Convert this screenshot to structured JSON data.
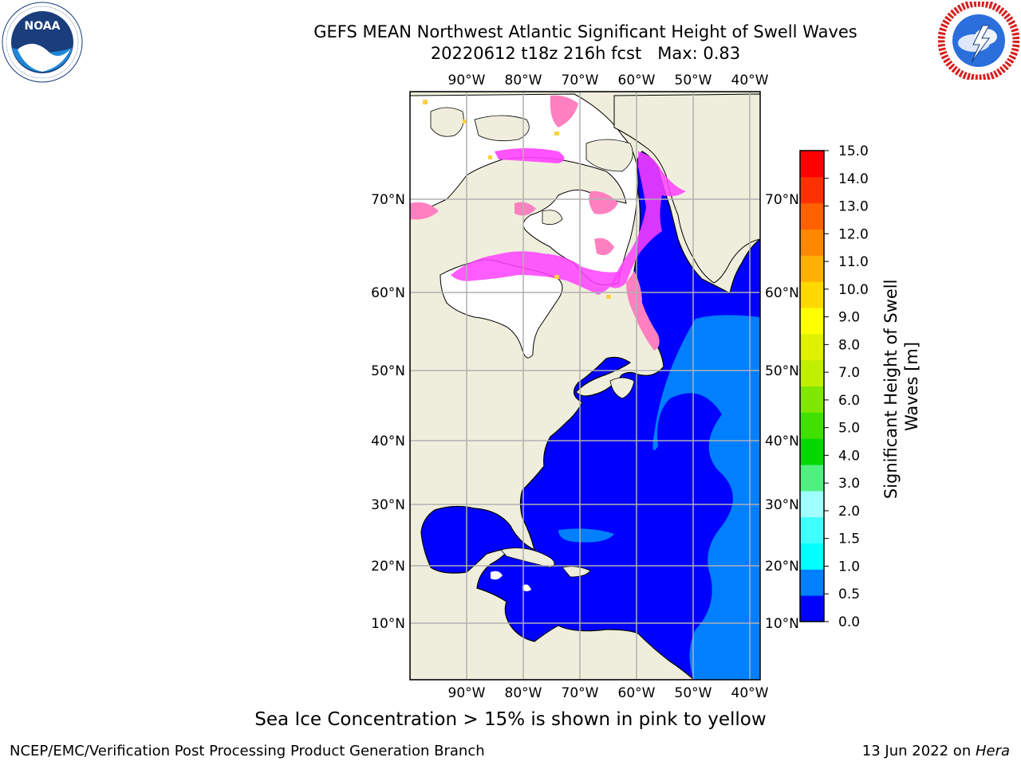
{
  "header": {
    "title_line1": "GEFS MEAN Northwest Atlantic Significant Height of Swell Waves",
    "title_line2": "20220612 t18z 216h fcst   Max: 0.83"
  },
  "logos": {
    "left": {
      "name": "noaa-logo",
      "text": "NOAA",
      "ring_text": "NATIONAL OCEANIC AND ATMOSPHERIC ADMINISTRATION · U.S. DEPARTMENT OF COMMERCE"
    },
    "right": {
      "name": "nws-logo",
      "ring_text": "NATIONAL WEATHER SERVICE"
    }
  },
  "map": {
    "lon_labels": [
      "90°W",
      "80°W",
      "70°W",
      "60°W",
      "50°W",
      "40°W"
    ],
    "lat_labels": [
      "70°N",
      "60°N",
      "50°N",
      "40°N",
      "30°N",
      "20°N",
      "10°N"
    ],
    "land_color": "#efeedc",
    "ocean_low_color": "#0000ff",
    "ocean_mid_color": "#0080ff",
    "ice_colors": [
      "#ff40ff",
      "#ff80c0",
      "#ffd040"
    ]
  },
  "colorbar": {
    "label": "Significant Height of Swell Waves [m]",
    "ticks": [
      "15.0",
      "14.0",
      "13.0",
      "12.0",
      "11.0",
      "10.0",
      "9.0",
      "8.0",
      "7.0",
      "6.0",
      "5.0",
      "4.0",
      "3.0",
      "2.0",
      "1.5",
      "1.0",
      "0.5",
      "0.0"
    ],
    "colors": [
      "#0000ff",
      "#0080ff",
      "#00ffff",
      "#40ffff",
      "#a0ffff",
      "#50f080",
      "#00d800",
      "#40e000",
      "#80e800",
      "#c0f000",
      "#e0f000",
      "#ffff00",
      "#ffd800",
      "#ffb000",
      "#ff8800",
      "#ff6000",
      "#ff3000",
      "#ff0000"
    ]
  },
  "footer": {
    "note": "Sea Ice Concentration > 15% is shown in pink to yellow",
    "credit_left": "NCEP/EMC/Verification Post Processing Product Generation Branch",
    "credit_right_prefix": "13 Jun 2022 on ",
    "credit_right_host": "Hera"
  }
}
